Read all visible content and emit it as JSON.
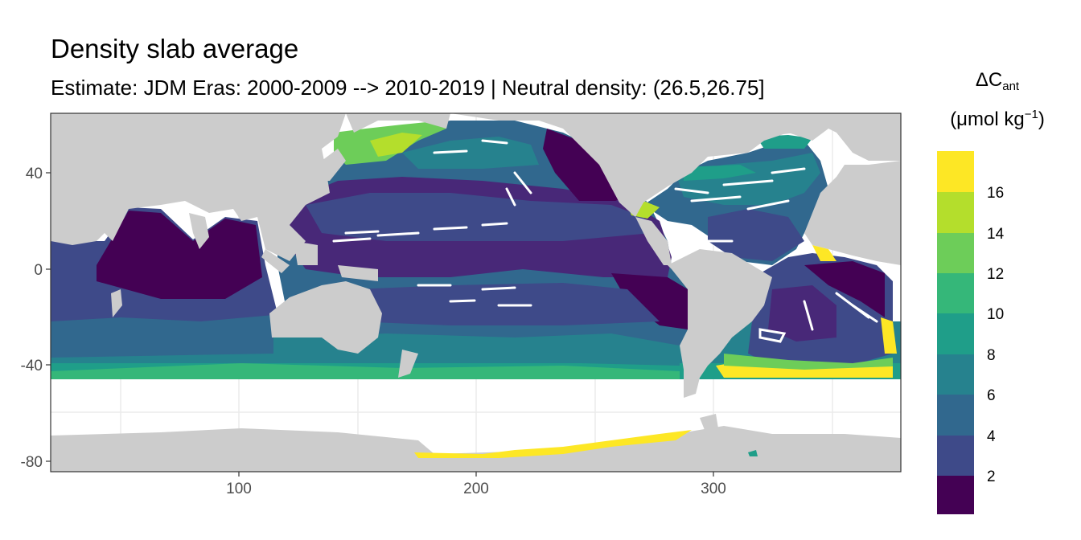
{
  "title": "Density slab average",
  "subtitle": "Estimate: JDM Eras: 2000-2009 --> 2010-2019 | Neutral density: (26.5,26.75]",
  "legend": {
    "title_symbol": "ΔC",
    "title_subscript": "ant",
    "unit_prefix": "(μmol kg",
    "unit_superscript": "−1",
    "unit_suffix": ")",
    "ticks": [
      "2",
      "4",
      "6",
      "8",
      "10",
      "12",
      "14",
      "16"
    ],
    "colors": [
      "#440154",
      "#482878",
      "#3E4A89",
      "#31688E",
      "#26828E",
      "#1F9E89",
      "#35B779",
      "#6DCD59",
      "#B4DE2C",
      "#FDE725"
    ]
  },
  "axes": {
    "x_ticks": [
      "100",
      "200",
      "300"
    ],
    "y_ticks": [
      "40",
      "0",
      "-40",
      "-80"
    ]
  },
  "colors": {
    "land": "#cccccc",
    "no_data": "#ffffff",
    "panel_border": "#333333"
  }
}
